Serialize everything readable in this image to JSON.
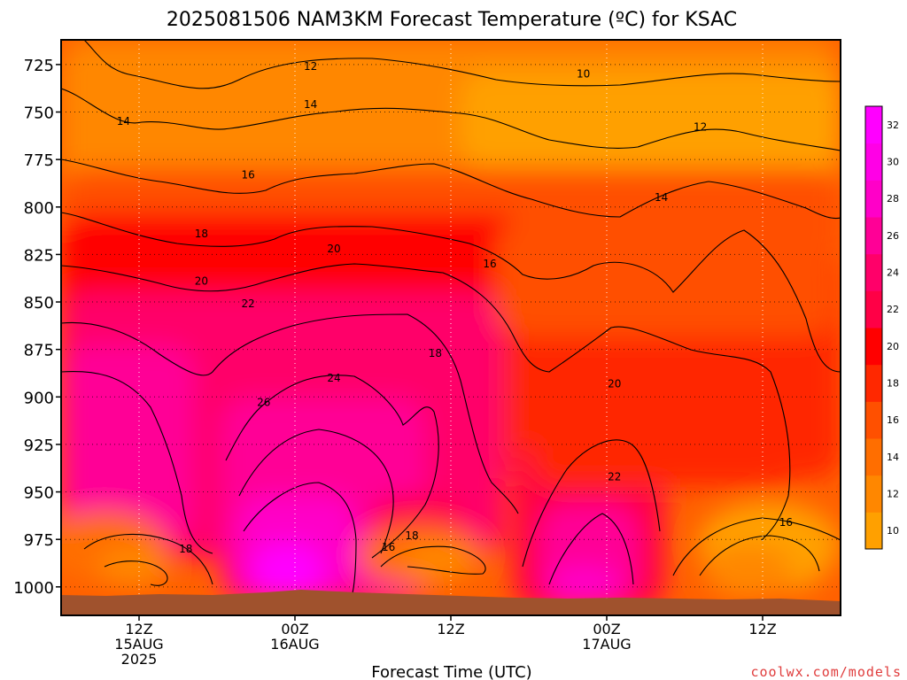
{
  "chart_data": {
    "type": "heatmap",
    "title": "2025081506 NAM3KM Forecast Temperature (ºC) for KSAC",
    "xlabel": "Forecast Time (UTC)",
    "ylabel": "",
    "credit": "coolwx.com/models",
    "x_range_hours": [
      -5,
      45
    ],
    "y_range_hPa": [
      712,
      1015
    ],
    "y_ticks": [
      725,
      750,
      775,
      800,
      825,
      850,
      875,
      900,
      925,
      950,
      975,
      1000
    ],
    "y_tick_labels": [
      "725",
      "750",
      "775",
      "800",
      "825",
      "850",
      "875",
      "900",
      "925",
      "950",
      "975",
      "1000"
    ],
    "x_ticks": [
      {
        "hour": 0,
        "lines": [
          "12Z",
          "15AUG",
          "2025"
        ]
      },
      {
        "hour": 10,
        "lines": [
          "00Z",
          "16AUG"
        ]
      },
      {
        "hour": 20,
        "lines": [
          "12Z"
        ]
      },
      {
        "hour": 30,
        "lines": [
          "00Z",
          "17AUG"
        ]
      },
      {
        "hour": 40,
        "lines": [
          "12Z"
        ]
      }
    ],
    "grid": true,
    "colorbar": {
      "ticks": [
        "10",
        "12",
        "14",
        "16",
        "18",
        "20",
        "22",
        "24",
        "26",
        "28",
        "30",
        "32"
      ],
      "levels": [
        10,
        12,
        14,
        16,
        18,
        20,
        22,
        24,
        26,
        28,
        30,
        32
      ],
      "colors": [
        "#ffa000",
        "#ff8700",
        "#ff6e00",
        "#ff5000",
        "#ff2800",
        "#ff0000",
        "#ff0046",
        "#ff0069",
        "#ff0096",
        "#ff00c8",
        "#ff00e6",
        "#ff00ff"
      ]
    },
    "contour_labels": [
      {
        "value": "12",
        "hour": 11,
        "p": 726
      },
      {
        "value": "10",
        "hour": 28.5,
        "p": 730
      },
      {
        "value": "14",
        "hour": -1,
        "p": 755
      },
      {
        "value": "14",
        "hour": 11,
        "p": 746
      },
      {
        "value": "12",
        "hour": 36,
        "p": 758
      },
      {
        "value": "16",
        "hour": 7,
        "p": 783
      },
      {
        "value": "14",
        "hour": 33.5,
        "p": 795
      },
      {
        "value": "18",
        "hour": 4,
        "p": 814
      },
      {
        "value": "20",
        "hour": 12.5,
        "p": 822
      },
      {
        "value": "16",
        "hour": 22.5,
        "p": 830
      },
      {
        "value": "20",
        "hour": 4,
        "p": 839
      },
      {
        "value": "22",
        "hour": 7,
        "p": 851
      },
      {
        "value": "18",
        "hour": 19,
        "p": 877
      },
      {
        "value": "24",
        "hour": 12.5,
        "p": 890
      },
      {
        "value": "20",
        "hour": 30.5,
        "p": 893
      },
      {
        "value": "26",
        "hour": 8,
        "p": 903
      },
      {
        "value": "22",
        "hour": 30.5,
        "p": 942
      },
      {
        "value": "16",
        "hour": 41.5,
        "p": 966
      },
      {
        "value": "18",
        "hour": 3,
        "p": 980
      },
      {
        "value": "18",
        "hour": 17.5,
        "p": 973
      },
      {
        "value": "16",
        "hour": 16,
        "p": 979
      }
    ]
  }
}
